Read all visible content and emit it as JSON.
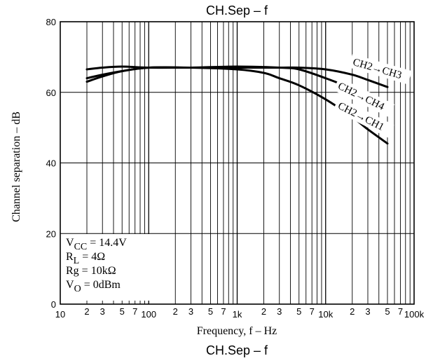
{
  "chart_data": {
    "type": "line",
    "title": "CH.Sep  –  f",
    "bottom_title": "CH.Sep  –  f",
    "xlabel": "Frequency, f  –  Hz",
    "ylabel": "Channel separation  –  dB",
    "x_scale": "log",
    "xlim": [
      10,
      100000
    ],
    "ylim": [
      0,
      80
    ],
    "grid": true,
    "y_ticks": [
      {
        "value": 0,
        "label": "0"
      },
      {
        "value": 20,
        "label": "20"
      },
      {
        "value": 40,
        "label": "40"
      },
      {
        "value": 60,
        "label": "60"
      },
      {
        "value": 80,
        "label": "80"
      }
    ],
    "x_tick_labels": [
      {
        "value": 10,
        "label": "10"
      },
      {
        "value": 20,
        "label": "2"
      },
      {
        "value": 30,
        "label": "3"
      },
      {
        "value": 50,
        "label": "5"
      },
      {
        "value": 70,
        "label": "7"
      },
      {
        "value": 100,
        "label": "100"
      },
      {
        "value": 200,
        "label": "2"
      },
      {
        "value": 300,
        "label": "3"
      },
      {
        "value": 500,
        "label": "5"
      },
      {
        "value": 700,
        "label": "7"
      },
      {
        "value": 1000,
        "label": "1k"
      },
      {
        "value": 2000,
        "label": "2"
      },
      {
        "value": 3000,
        "label": "3"
      },
      {
        "value": 5000,
        "label": "5"
      },
      {
        "value": 7000,
        "label": "7"
      },
      {
        "value": 10000,
        "label": "10k"
      },
      {
        "value": 20000,
        "label": "2"
      },
      {
        "value": 30000,
        "label": "3"
      },
      {
        "value": 50000,
        "label": "5"
      },
      {
        "value": 70000,
        "label": "7"
      },
      {
        "value": 100000,
        "label": "100k"
      }
    ],
    "conditions": [
      {
        "main": "V",
        "sub": "CC",
        "rest": " = 14.4V"
      },
      {
        "main": "R",
        "sub": "L",
        "rest": " = 4Ω"
      },
      {
        "main": "Rg = 10kΩ",
        "sub": "",
        "rest": ""
      },
      {
        "main": "V",
        "sub": "O",
        "rest": " = 0dBm"
      }
    ],
    "series": [
      {
        "name": "CH2→CH3",
        "points": [
          [
            20,
            66.5
          ],
          [
            30,
            67
          ],
          [
            50,
            67.3
          ],
          [
            100,
            67
          ],
          [
            300,
            67
          ],
          [
            1000,
            67
          ],
          [
            3000,
            67
          ],
          [
            5000,
            67
          ],
          [
            10000,
            66.5
          ],
          [
            20000,
            65
          ],
          [
            30000,
            63.5
          ],
          [
            50000,
            61.5
          ]
        ]
      },
      {
        "name": "CH2→CH4",
        "points": [
          [
            20,
            64
          ],
          [
            30,
            65
          ],
          [
            50,
            66
          ],
          [
            100,
            67
          ],
          [
            300,
            67
          ],
          [
            1000,
            67.3
          ],
          [
            3000,
            67
          ],
          [
            5000,
            66.5
          ],
          [
            10000,
            64
          ],
          [
            20000,
            61
          ],
          [
            30000,
            58.5
          ],
          [
            50000,
            55
          ]
        ]
      },
      {
        "name": "CH2→CH1",
        "points": [
          [
            20,
            63
          ],
          [
            30,
            64.5
          ],
          [
            50,
            66
          ],
          [
            100,
            67
          ],
          [
            300,
            67
          ],
          [
            1000,
            66.5
          ],
          [
            2000,
            65.5
          ],
          [
            3000,
            64
          ],
          [
            5000,
            62
          ],
          [
            10000,
            58
          ],
          [
            20000,
            53
          ],
          [
            30000,
            49.5
          ],
          [
            50000,
            45.5
          ]
        ]
      }
    ]
  }
}
